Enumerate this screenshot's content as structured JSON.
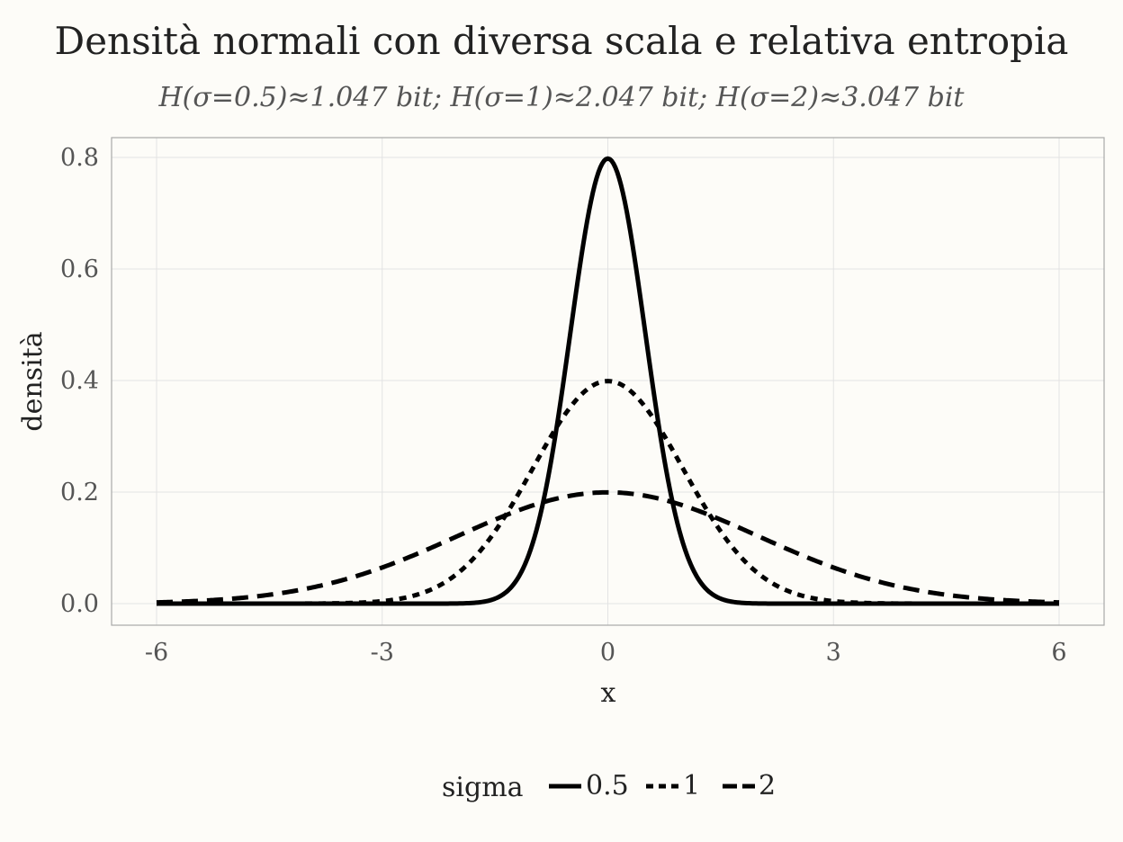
{
  "chart_data": {
    "type": "line",
    "title": "Densità normali con diversa scala e relativa entropia",
    "subtitle": "H(σ=0.5)≈1.047 bit; H(σ=1)≈2.047 bit; H(σ=2)≈3.047 bit",
    "xlabel": "x",
    "ylabel": "densità",
    "xlim": [
      -6,
      6
    ],
    "ylim": [
      0,
      0.8
    ],
    "x_ticks": [
      -6,
      -3,
      0,
      3,
      6
    ],
    "x_tick_labels": [
      "-6",
      "-3",
      "0",
      "3",
      "6"
    ],
    "y_ticks": [
      0,
      0.2,
      0.4,
      0.6,
      0.8
    ],
    "y_tick_labels": [
      "0.0",
      "0.2",
      "0.4",
      "0.6",
      "0.8"
    ],
    "grid": true,
    "legend": {
      "title": "sigma",
      "position": "bottom"
    },
    "series": [
      {
        "name": "0.5",
        "sigma": 0.5,
        "mean": 0,
        "linetype": "solid",
        "color": "#000000"
      },
      {
        "name": "1",
        "sigma": 1,
        "mean": 0,
        "linetype": "dotted",
        "color": "#000000"
      },
      {
        "name": "2",
        "sigma": 2,
        "mean": 0,
        "linetype": "dashed",
        "color": "#000000"
      }
    ]
  }
}
